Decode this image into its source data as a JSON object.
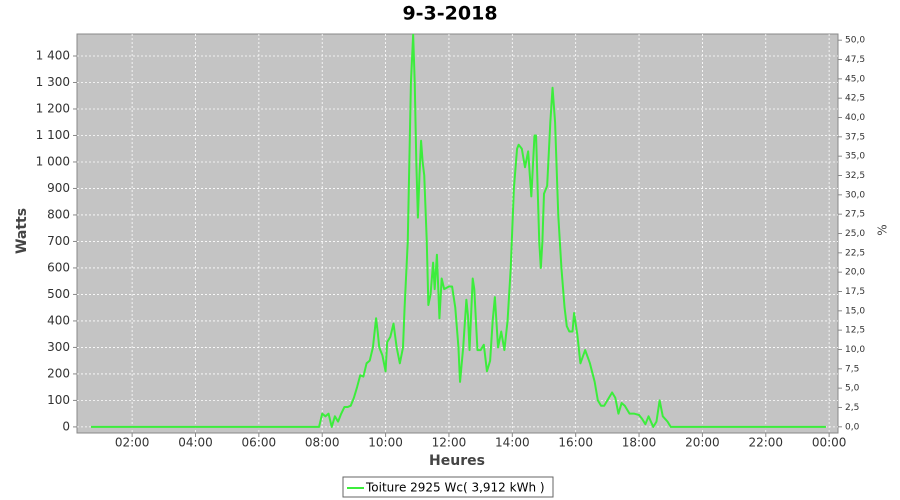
{
  "chart_data": {
    "type": "line",
    "title": "9-3-2018",
    "xlabel": "Heures",
    "ylabel": "Watts",
    "y2label": "%",
    "x": [
      0.7,
      1,
      2,
      3,
      4,
      5,
      6,
      7,
      7.8,
      7.9,
      8.0,
      8.1,
      8.2,
      8.3,
      8.4,
      8.5,
      8.6,
      8.7,
      8.8,
      8.9,
      9.0,
      9.1,
      9.2,
      9.3,
      9.4,
      9.5,
      9.6,
      9.7,
      9.75,
      9.8,
      9.9,
      10.0,
      10.05,
      10.15,
      10.25,
      10.35,
      10.45,
      10.55,
      10.6,
      10.7,
      10.75,
      10.8,
      10.87,
      10.92,
      10.97,
      11.02,
      11.07,
      11.12,
      11.17,
      11.22,
      11.3,
      11.35,
      11.42,
      11.5,
      11.55,
      11.62,
      11.7,
      11.77,
      11.85,
      12.0,
      12.1,
      12.2,
      12.3,
      12.35,
      12.45,
      12.55,
      12.6,
      12.65,
      12.75,
      12.8,
      12.9,
      13.0,
      13.1,
      13.2,
      13.3,
      13.38,
      13.45,
      13.55,
      13.65,
      13.75,
      13.85,
      13.95,
      14.05,
      14.15,
      14.2,
      14.3,
      14.4,
      14.5,
      14.6,
      14.7,
      14.75,
      14.8,
      14.85,
      14.9,
      14.95,
      15.0,
      15.1,
      15.2,
      15.27,
      15.35,
      15.45,
      15.55,
      15.65,
      15.72,
      15.8,
      15.9,
      15.95,
      16.05,
      16.15,
      16.3,
      16.45,
      16.6,
      16.7,
      16.8,
      16.9,
      17.0,
      17.15,
      17.25,
      17.35,
      17.45,
      17.55,
      17.7,
      17.85,
      18.0,
      18.1,
      18.2,
      18.3,
      18.45,
      18.55,
      18.65,
      18.75,
      18.9,
      19.0,
      19.2,
      20,
      21,
      22,
      23,
      23.9
    ],
    "series": [
      {
        "name": "Toiture 2925 Wc( 3,912 kWh )",
        "color": "#3ced3c",
        "values": [
          0,
          0,
          0,
          0,
          0,
          0,
          0,
          0,
          0,
          0,
          50,
          40,
          50,
          0,
          40,
          20,
          50,
          75,
          75,
          80,
          110,
          150,
          195,
          190,
          240,
          250,
          300,
          410,
          360,
          300,
          270,
          210,
          320,
          340,
          390,
          300,
          240,
          300,
          450,
          700,
          1000,
          1300,
          1480,
          1300,
          1000,
          790,
          950,
          1080,
          1000,
          950,
          700,
          460,
          500,
          620,
          520,
          650,
          410,
          560,
          520,
          530,
          530,
          450,
          300,
          170,
          300,
          480,
          420,
          290,
          560,
          520,
          290,
          290,
          310,
          210,
          250,
          400,
          490,
          300,
          360,
          290,
          400,
          600,
          900,
          1050,
          1065,
          1050,
          980,
          1040,
          870,
          1100,
          1100,
          900,
          700,
          600,
          700,
          880,
          910,
          1150,
          1280,
          1150,
          800,
          600,
          450,
          380,
          360,
          360,
          430,
          350,
          240,
          290,
          240,
          170,
          100,
          80,
          80,
          100,
          130,
          110,
          50,
          90,
          80,
          50,
          50,
          45,
          30,
          10,
          40,
          0,
          20,
          100,
          40,
          20,
          0,
          0,
          0,
          0,
          0,
          0,
          0
        ]
      }
    ],
    "xlim": [
      0.26,
      24.28
    ],
    "xticks": [
      {
        "value": 2,
        "label": "02:00"
      },
      {
        "value": 4,
        "label": "04:00"
      },
      {
        "value": 6,
        "label": "06:00"
      },
      {
        "value": 8,
        "label": "08:00"
      },
      {
        "value": 10,
        "label": "10:00"
      },
      {
        "value": 12,
        "label": "12:00"
      },
      {
        "value": 14,
        "label": "14:00"
      },
      {
        "value": 16,
        "label": "16:00"
      },
      {
        "value": 18,
        "label": "18:00"
      },
      {
        "value": 20,
        "label": "20:00"
      },
      {
        "value": 22,
        "label": "22:00"
      },
      {
        "value": 24,
        "label": "00:00"
      }
    ],
    "ylim": [
      -23,
      1483
    ],
    "yticks": [
      0,
      100,
      200,
      300,
      400,
      500,
      600,
      700,
      800,
      900,
      {
        "value": 1000,
        "label": "1 000"
      },
      {
        "value": 1100,
        "label": "1 100"
      },
      {
        "value": 1200,
        "label": "1 200"
      },
      {
        "value": 1300,
        "label": "1 300"
      },
      {
        "value": 1400,
        "label": "1 400"
      }
    ],
    "y2lim": [
      -0.8,
      50.8
    ],
    "y2ticks": [
      {
        "value": 0,
        "label": "0,0"
      },
      {
        "value": 2.5,
        "label": "2,5"
      },
      {
        "value": 5,
        "label": "5,0"
      },
      {
        "value": 7.5,
        "label": "7,5"
      },
      {
        "value": 10,
        "label": "10,0"
      },
      {
        "value": 12.5,
        "label": "12,5"
      },
      {
        "value": 15,
        "label": "15,0"
      },
      {
        "value": 17.5,
        "label": "17,5"
      },
      {
        "value": 20,
        "label": "20,0"
      },
      {
        "value": 22.5,
        "label": "22,5"
      },
      {
        "value": 25,
        "label": "25,0"
      },
      {
        "value": 27.5,
        "label": "27,5"
      },
      {
        "value": 30,
        "label": "30,0"
      },
      {
        "value": 32.5,
        "label": "32,5"
      },
      {
        "value": 35,
        "label": "35,0"
      },
      {
        "value": 37.5,
        "label": "37,5"
      },
      {
        "value": 40,
        "label": "40,0"
      },
      {
        "value": 42.5,
        "label": "42,5"
      },
      {
        "value": 45,
        "label": "45,0"
      },
      {
        "value": 47.5,
        "label": "47,5"
      },
      {
        "value": 50,
        "label": "50,0"
      }
    ],
    "grid": true
  }
}
